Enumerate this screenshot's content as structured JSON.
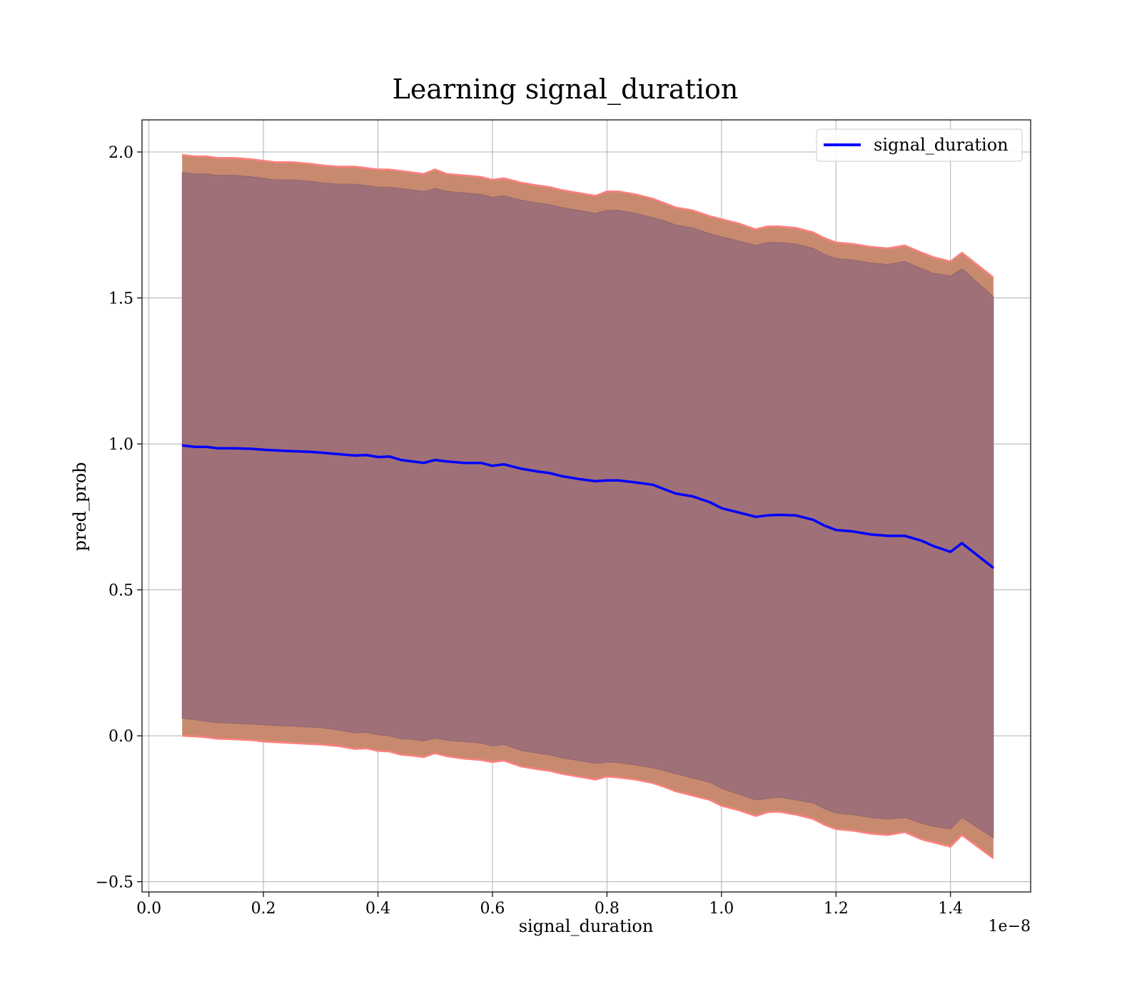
{
  "chart_data": {
    "type": "line",
    "title": "Learning signal_duration",
    "xlabel": "signal_duration",
    "ylabel": "pred_prob",
    "x_offset_label": "1e−8",
    "xlim": [
      -0.012,
      1.54
    ],
    "ylim": [
      -0.535,
      2.11
    ],
    "x_ticks": [
      0.0,
      0.2,
      0.4,
      0.6,
      0.8,
      1.0,
      1.2,
      1.4
    ],
    "x_tick_labels": [
      "0.0",
      "0.2",
      "0.4",
      "0.6",
      "0.8",
      "1.0",
      "1.2",
      "1.4"
    ],
    "y_ticks": [
      -0.5,
      0.0,
      0.5,
      1.0,
      1.5,
      2.0
    ],
    "y_tick_labels": [
      "−0.5",
      "0.0",
      "0.5",
      "1.0",
      "1.5",
      "2.0"
    ],
    "grid": true,
    "legend_position": "top-right",
    "series": [
      {
        "name": "signal_duration",
        "color": "#0000ff",
        "x": [
          0.058,
          0.08,
          0.1,
          0.12,
          0.15,
          0.18,
          0.2,
          0.22,
          0.25,
          0.28,
          0.3,
          0.33,
          0.36,
          0.38,
          0.4,
          0.42,
          0.44,
          0.46,
          0.48,
          0.5,
          0.52,
          0.55,
          0.58,
          0.6,
          0.62,
          0.65,
          0.68,
          0.7,
          0.72,
          0.75,
          0.78,
          0.8,
          0.82,
          0.85,
          0.88,
          0.9,
          0.92,
          0.95,
          0.98,
          1.0,
          1.03,
          1.06,
          1.08,
          1.1,
          1.13,
          1.16,
          1.18,
          1.2,
          1.23,
          1.26,
          1.29,
          1.32,
          1.35,
          1.37,
          1.4,
          1.42,
          1.475
        ],
        "y": [
          0.995,
          0.99,
          0.99,
          0.985,
          0.985,
          0.983,
          0.98,
          0.978,
          0.975,
          0.973,
          0.97,
          0.965,
          0.96,
          0.962,
          0.955,
          0.957,
          0.945,
          0.94,
          0.935,
          0.945,
          0.94,
          0.935,
          0.935,
          0.925,
          0.93,
          0.915,
          0.905,
          0.9,
          0.89,
          0.88,
          0.872,
          0.875,
          0.875,
          0.868,
          0.86,
          0.845,
          0.83,
          0.82,
          0.8,
          0.78,
          0.765,
          0.75,
          0.755,
          0.757,
          0.755,
          0.74,
          0.72,
          0.705,
          0.7,
          0.69,
          0.685,
          0.685,
          0.668,
          0.65,
          0.63,
          0.66,
          0.575
        ],
        "lower": [
          0.06,
          0.055,
          0.05,
          0.045,
          0.043,
          0.04,
          0.038,
          0.035,
          0.033,
          0.03,
          0.028,
          0.02,
          0.01,
          0.012,
          0.003,
          0.0,
          -0.01,
          -0.012,
          -0.018,
          -0.008,
          -0.015,
          -0.02,
          -0.025,
          -0.035,
          -0.03,
          -0.05,
          -0.06,
          -0.065,
          -0.075,
          -0.085,
          -0.095,
          -0.09,
          -0.092,
          -0.1,
          -0.11,
          -0.12,
          -0.13,
          -0.145,
          -0.16,
          -0.18,
          -0.2,
          -0.22,
          -0.215,
          -0.21,
          -0.22,
          -0.23,
          -0.25,
          -0.265,
          -0.27,
          -0.28,
          -0.285,
          -0.28,
          -0.3,
          -0.31,
          -0.32,
          -0.28,
          -0.35
        ],
        "upper": [
          1.93,
          1.925,
          1.925,
          1.92,
          1.92,
          1.915,
          1.91,
          1.905,
          1.905,
          1.9,
          1.895,
          1.89,
          1.89,
          1.885,
          1.88,
          1.88,
          1.875,
          1.87,
          1.865,
          1.875,
          1.865,
          1.86,
          1.855,
          1.845,
          1.85,
          1.835,
          1.825,
          1.82,
          1.81,
          1.8,
          1.79,
          1.8,
          1.8,
          1.79,
          1.775,
          1.765,
          1.75,
          1.74,
          1.72,
          1.71,
          1.695,
          1.68,
          1.69,
          1.69,
          1.685,
          1.67,
          1.65,
          1.635,
          1.63,
          1.62,
          1.615,
          1.625,
          1.6,
          1.585,
          1.575,
          1.6,
          1.505
        ],
        "lower_outer": [
          0.0,
          -0.002,
          -0.005,
          -0.01,
          -0.012,
          -0.015,
          -0.02,
          -0.022,
          -0.025,
          -0.028,
          -0.03,
          -0.035,
          -0.045,
          -0.043,
          -0.052,
          -0.054,
          -0.065,
          -0.068,
          -0.073,
          -0.06,
          -0.07,
          -0.078,
          -0.083,
          -0.09,
          -0.085,
          -0.105,
          -0.115,
          -0.12,
          -0.13,
          -0.14,
          -0.15,
          -0.14,
          -0.143,
          -0.15,
          -0.162,
          -0.175,
          -0.19,
          -0.205,
          -0.22,
          -0.24,
          -0.255,
          -0.275,
          -0.262,
          -0.26,
          -0.27,
          -0.285,
          -0.305,
          -0.32,
          -0.325,
          -0.335,
          -0.34,
          -0.33,
          -0.355,
          -0.365,
          -0.38,
          -0.34,
          -0.42
        ],
        "upper_outer": [
          1.99,
          1.985,
          1.985,
          1.98,
          1.98,
          1.975,
          1.97,
          1.965,
          1.965,
          1.96,
          1.955,
          1.95,
          1.95,
          1.945,
          1.94,
          1.94,
          1.935,
          1.93,
          1.925,
          1.94,
          1.925,
          1.92,
          1.915,
          1.905,
          1.91,
          1.895,
          1.885,
          1.88,
          1.87,
          1.86,
          1.85,
          1.865,
          1.865,
          1.855,
          1.84,
          1.825,
          1.81,
          1.8,
          1.78,
          1.77,
          1.755,
          1.735,
          1.745,
          1.745,
          1.74,
          1.725,
          1.705,
          1.69,
          1.685,
          1.675,
          1.67,
          1.68,
          1.655,
          1.64,
          1.625,
          1.655,
          1.57
        ]
      }
    ]
  }
}
